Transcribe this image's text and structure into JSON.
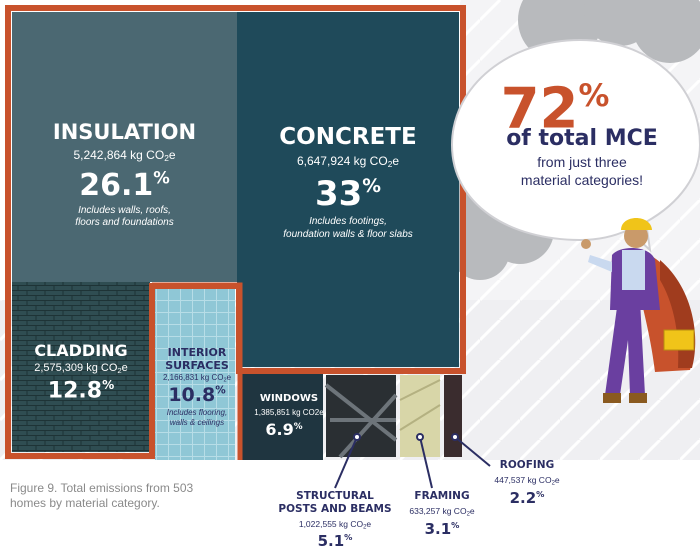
{
  "colors": {
    "accent": "#c8522c",
    "navy": "#2b2e63",
    "insulation": "#4b6872",
    "concrete": "#1f4a5a",
    "cladding": "#2f4d52",
    "interior": "#8fc7d6",
    "windows": "#1f3540",
    "structural": "#2a2f33",
    "framing": "#d8d6a8",
    "roofing": "#3a2c2e",
    "caption": "#8a8a8a"
  },
  "callout": {
    "big_number": "72",
    "big_suffix": "%",
    "line1": "of total MCE",
    "line2": "from just three",
    "line3": "material categories!"
  },
  "figure_caption": {
    "line1": "Figure 9. Total emissions from 503",
    "line2": "homes by material category."
  },
  "chart_data": {
    "type": "treemap",
    "unit": "kg CO2e",
    "categories": [
      {
        "name": "CONCRETE",
        "amount_label": "6,647,924 kg CO",
        "amount_unit": "e",
        "value": 6647924,
        "percent": 33,
        "percent_label": "33",
        "note": "Includes footings,",
        "note2": "foundation walls & floor slabs",
        "highlighted": true,
        "icon": "concrete-texture"
      },
      {
        "name": "INSULATION",
        "amount_label": "5,242,864 kg CO",
        "amount_unit": "e",
        "value": 5242864,
        "percent": 26.1,
        "percent_label": "26.1",
        "note": "Includes walls, roofs,",
        "note2": "floors and foundations",
        "highlighted": true,
        "icon": "insulation-texture"
      },
      {
        "name": "CLADDING",
        "amount_label": "2,575,309 kg CO",
        "amount_unit": "e",
        "value": 2575309,
        "percent": 12.8,
        "percent_label": "12.8",
        "note": "",
        "note2": "",
        "highlighted": true,
        "icon": "brick-texture"
      },
      {
        "name": "INTERIOR",
        "name2": "SURFACES",
        "amount_label": "2,166,831 kg CO",
        "amount_unit": "e",
        "value": 2166831,
        "percent": 10.8,
        "percent_label": "10.8",
        "note": "Includes flooring,",
        "note2": "walls & ceilings",
        "highlighted": false,
        "icon": "tile-texture"
      },
      {
        "name": "WINDOWS",
        "amount_label": "1,385,851 kg CO2e",
        "amount_unit": "",
        "value": 1385851,
        "percent": 6.9,
        "percent_label": "6.9",
        "note": "",
        "note2": "",
        "highlighted": false,
        "icon": "window-photo"
      },
      {
        "name": "STRUCTURAL",
        "name2": "POSTS AND BEAMS",
        "amount_label": "1,022,555 kg CO",
        "amount_unit": "e",
        "value": 1022555,
        "percent": 5.1,
        "percent_label": "5.1",
        "note": "",
        "note2": "",
        "highlighted": false,
        "icon": "steel-beams-photo"
      },
      {
        "name": "FRAMING",
        "amount_label": "633,257 kg CO",
        "amount_unit": "e",
        "value": 633257,
        "percent": 3.1,
        "percent_label": "3.1",
        "note": "",
        "note2": "",
        "highlighted": false,
        "icon": "timber-photo"
      },
      {
        "name": "ROOFING",
        "amount_label": "447,537 kg CO",
        "amount_unit": "e",
        "value": 447537,
        "percent": 2.2,
        "percent_label": "2.2",
        "note": "",
        "note2": "",
        "highlighted": false,
        "icon": "shingle-photo"
      }
    ],
    "percent_suffix": "%"
  }
}
